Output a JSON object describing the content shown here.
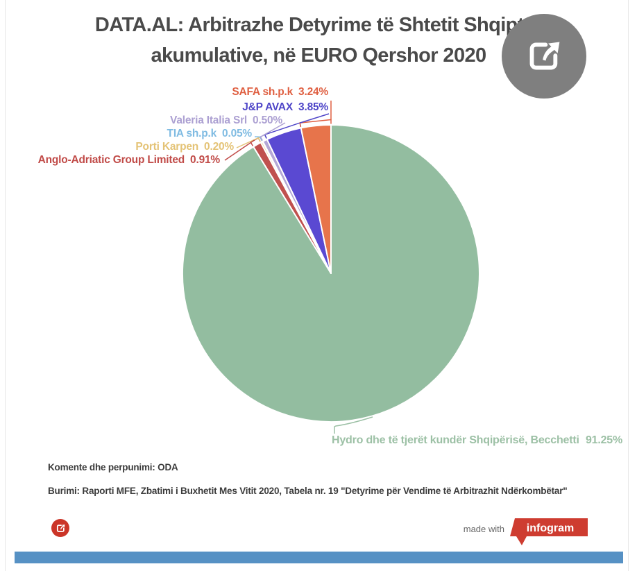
{
  "header": {
    "title_line1": "DATA.AL: Arbitrazhe Detyrime të Shtetit Shqiptar",
    "title_line2": "akumulative, në EURO Qershor 2020"
  },
  "chart_data": {
    "type": "pie",
    "title": "DATA.AL: Arbitrazhe Detyrime të Shtetit Shqiptar akumulative, në EURO Qershor 2020",
    "unit": "percent",
    "start_angle_deg": 0,
    "direction": "clockwise",
    "legend_position": "callout-labels",
    "separator_color": "#ffffff",
    "slices": [
      {
        "label": "Hydro dhe të tjerët kundër Shqipërisë, Becchetti",
        "value": 91.25,
        "pct": "91.25%",
        "color": "#93bda0",
        "label_color": "#9cc0a5"
      },
      {
        "label": "Anglo-Adriatic Group Limited",
        "value": 0.91,
        "pct": "0.91%",
        "color": "#c0504e",
        "label_color": "#c14b48"
      },
      {
        "label": "Porti Karpen",
        "value": 0.2,
        "pct": "0.20%",
        "color": "#e9cb81",
        "label_color": "#e4c376"
      },
      {
        "label": "TIA sh.p.k",
        "value": 0.05,
        "pct": "0.05%",
        "color": "#8cc3e8",
        "label_color": "#7fbbe2"
      },
      {
        "label": "Valeria Italia Srl",
        "value": 0.5,
        "pct": "0.50%",
        "color": "#b4a7d5",
        "label_color": "#aca0d2"
      },
      {
        "label": "J&P AVAX",
        "value": 3.85,
        "pct": "3.85%",
        "color": "#5a49d2",
        "label_color": "#4f46c8"
      },
      {
        "label": "SAFA sh.p.k",
        "value": 3.24,
        "pct": "3.24%",
        "color": "#e7744b",
        "label_color": "#df5f41"
      }
    ]
  },
  "footer": {
    "comment": "Komente dhe perpunimi: ODA",
    "source": "Burimi: Raporti MFE, Zbatimi i Buxhetit Mes Vitit 2020, Tabela nr. 19 \"Detyrime për Vendime të Arbitrazhit Ndërkombëtar\""
  },
  "branding": {
    "made_with": "made with",
    "logo_text": "infogram",
    "logo_color": "#ce3c30",
    "bottom_bar_color": "#5691c4",
    "share_button_color": "#cb3528",
    "share_circle_color": "#7f7f7f"
  },
  "icons": {
    "top_right": "share-icon",
    "bottom_left": "share-icon"
  }
}
